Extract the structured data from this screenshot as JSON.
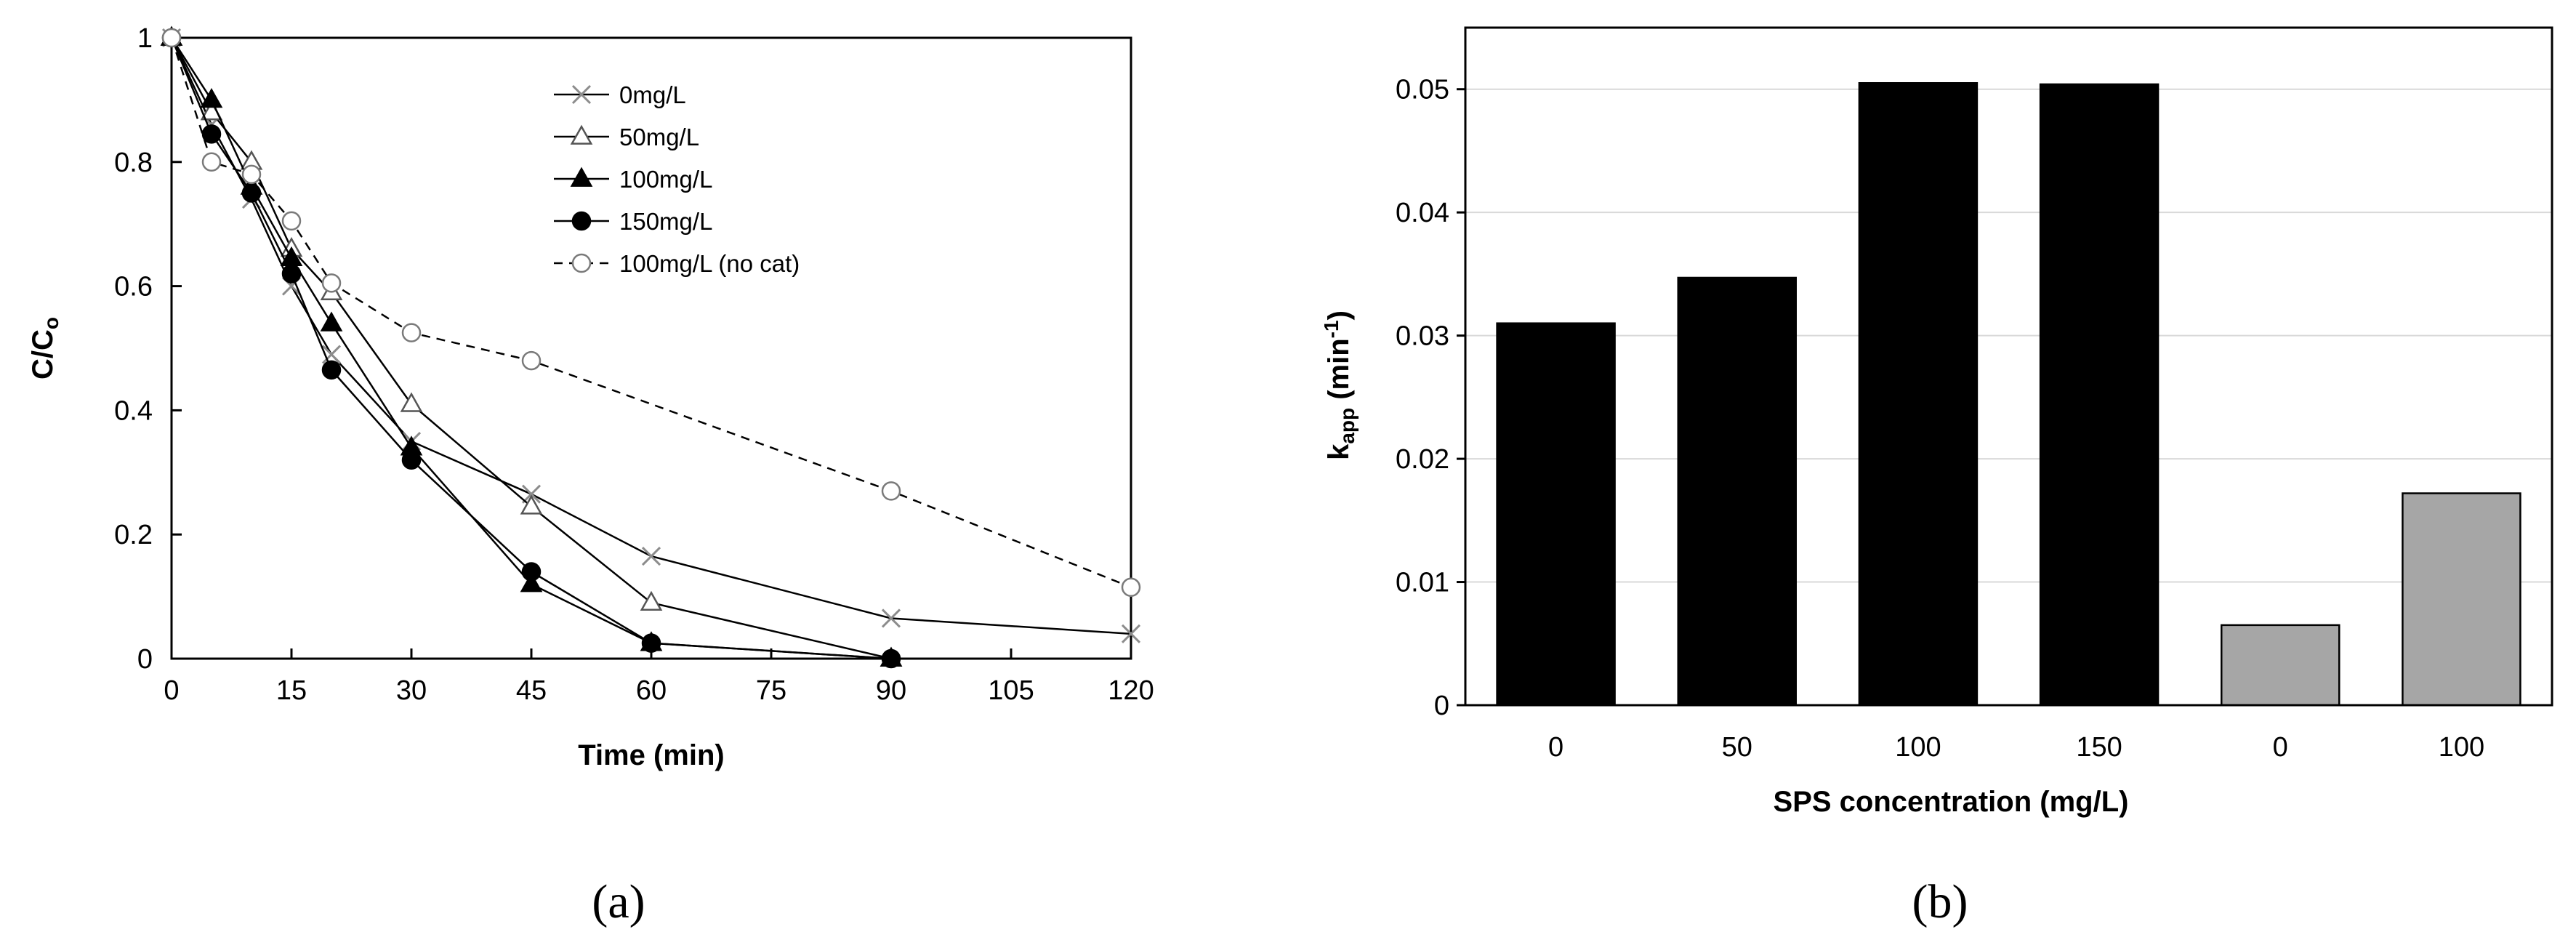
{
  "chart_data": [
    {
      "type": "line",
      "panel_label": "(a)",
      "xlabel": "Time (min)",
      "ylabel": "C/C",
      "ylabel_sub": "o",
      "xlim": [
        0,
        120
      ],
      "ylim": [
        0,
        1
      ],
      "xticks": [
        "0",
        "15",
        "30",
        "45",
        "60",
        "75",
        "90",
        "105",
        "120"
      ],
      "yticks": [
        "0",
        "0.2",
        "0.4",
        "0.6",
        "0.8",
        "1"
      ],
      "legend_position": "top-right",
      "series": [
        {
          "name": "0mg/L",
          "marker": "x",
          "dash": false,
          "x": [
            0,
            5,
            10,
            15,
            20,
            30,
            45,
            60,
            90,
            120
          ],
          "y": [
            1.0,
            0.86,
            0.74,
            0.6,
            0.49,
            0.35,
            0.265,
            0.165,
            0.065,
            0.04
          ]
        },
        {
          "name": "50mg/L",
          "marker": "triangle-open",
          "dash": false,
          "x": [
            0,
            5,
            10,
            15,
            20,
            30,
            45,
            60,
            90
          ],
          "y": [
            1.0,
            0.88,
            0.8,
            0.66,
            0.59,
            0.41,
            0.245,
            0.09,
            0.0
          ]
        },
        {
          "name": "100mg/L",
          "marker": "triangle-filled",
          "dash": false,
          "x": [
            0,
            5,
            10,
            15,
            20,
            30,
            45,
            60,
            90
          ],
          "y": [
            1.0,
            0.9,
            0.76,
            0.645,
            0.54,
            0.34,
            0.12,
            0.025,
            0.0
          ]
        },
        {
          "name": "150mg/L",
          "marker": "circle-filled",
          "dash": false,
          "x": [
            0,
            5,
            10,
            15,
            20,
            30,
            45,
            60,
            90
          ],
          "y": [
            1.0,
            0.845,
            0.75,
            0.62,
            0.465,
            0.32,
            0.14,
            0.025,
            0.0
          ]
        },
        {
          "name": "100mg/L (no cat)",
          "marker": "circle-open",
          "dash": true,
          "x": [
            0,
            5,
            10,
            15,
            20,
            30,
            45,
            90,
            120
          ],
          "y": [
            1.0,
            0.8,
            0.78,
            0.705,
            0.605,
            0.525,
            0.48,
            0.27,
            0.115
          ]
        }
      ]
    },
    {
      "type": "bar",
      "panel_label": "(b)",
      "xlabel": "SPS concentration (mg/L)",
      "ylabel_main": "k",
      "ylabel_sub": "app",
      "ylabel_unit": " (min",
      "ylabel_sup": "-1",
      "ylabel_close": ")",
      "ylim": [
        0,
        0.055
      ],
      "yticks": [
        "0",
        "0.01",
        "0.02",
        "0.03",
        "0.04",
        "0.05"
      ],
      "categories": [
        "0",
        "50",
        "100",
        "150",
        "0",
        "100"
      ],
      "values": [
        0.031,
        0.0347,
        0.0505,
        0.0504,
        0.0065,
        0.0172
      ],
      "bar_colors": [
        "#000000",
        "#000000",
        "#000000",
        "#000000",
        "#a6a6a6",
        "#a6a6a6"
      ]
    }
  ]
}
